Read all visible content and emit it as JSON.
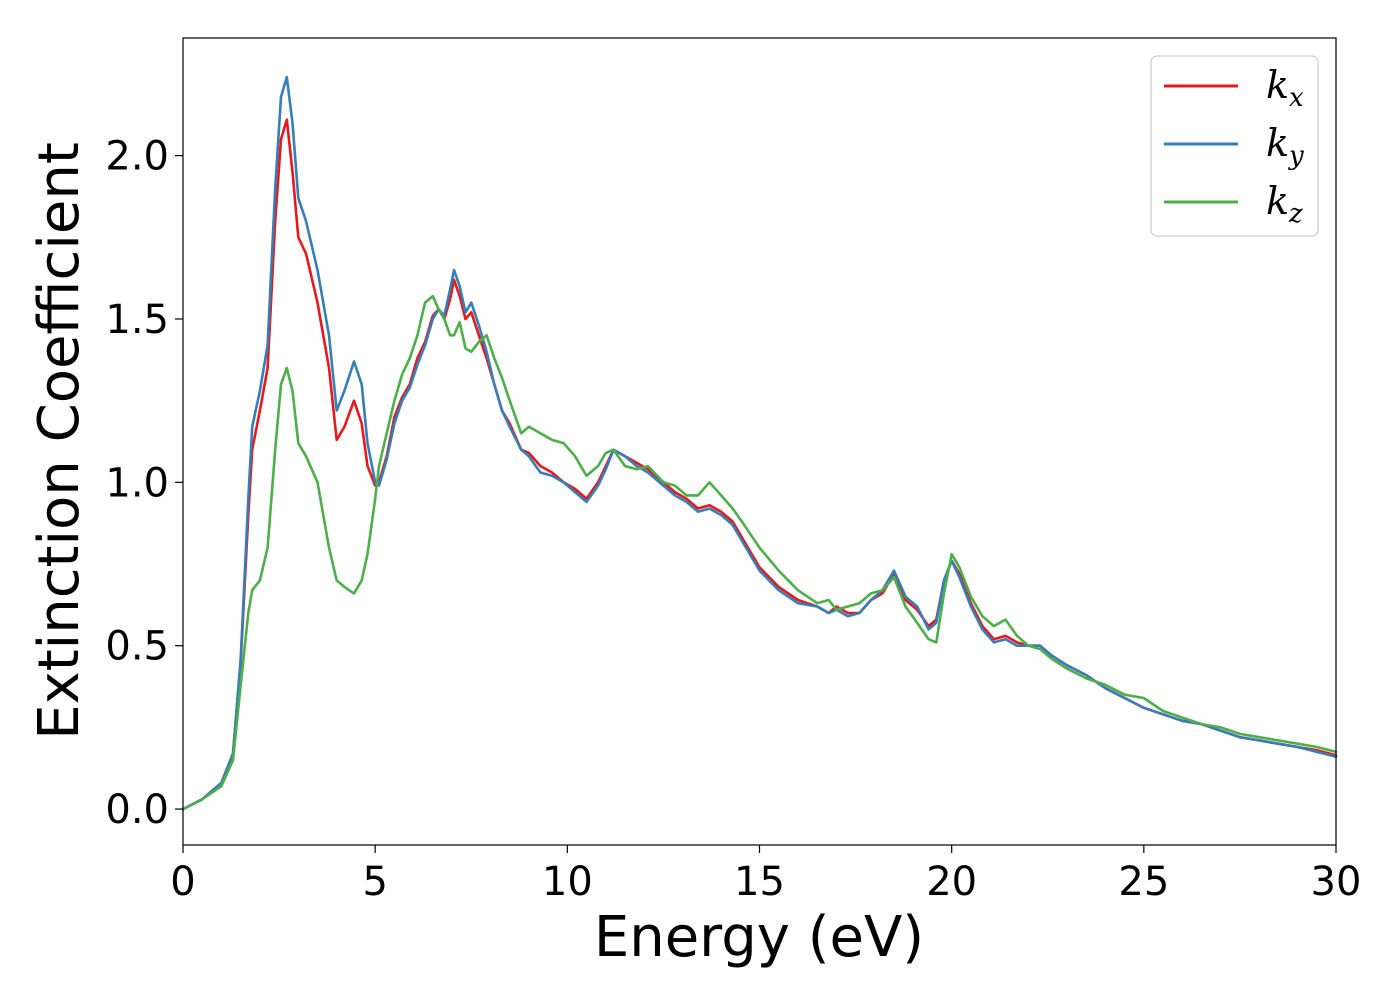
{
  "chart_data": {
    "type": "line",
    "title": "",
    "xlabel": "Energy (eV)",
    "ylabel": "Extinction Coefficient",
    "xlim": [
      0,
      30
    ],
    "ylim": [
      -0.11,
      2.36
    ],
    "xticks": [
      0,
      5,
      10,
      15,
      20,
      25,
      30
    ],
    "xtick_labels": [
      "0",
      "5",
      "10",
      "15",
      "20",
      "25",
      "30"
    ],
    "yticks": [
      0.0,
      0.5,
      1.0,
      1.5,
      2.0
    ],
    "ytick_labels": [
      "0.0",
      "0.5",
      "1.0",
      "1.5",
      "2.0"
    ],
    "grid": false,
    "legend_position": "top-right",
    "series": [
      {
        "name": "k",
        "subscript": "x",
        "color": "#e41a1c",
        "x": [
          0,
          0.5,
          1.0,
          1.3,
          1.5,
          1.7,
          1.8,
          2.0,
          2.2,
          2.4,
          2.55,
          2.7,
          2.85,
          3.0,
          3.2,
          3.5,
          3.8,
          4.0,
          4.2,
          4.45,
          4.65,
          4.8,
          5.0,
          5.1,
          5.3,
          5.5,
          5.7,
          5.9,
          6.1,
          6.3,
          6.5,
          6.65,
          6.8,
          6.95,
          7.05,
          7.2,
          7.35,
          7.5,
          7.7,
          7.9,
          8.1,
          8.3,
          8.5,
          8.8,
          9.0,
          9.3,
          9.6,
          9.9,
          10.2,
          10.5,
          10.8,
          11.0,
          11.2,
          11.5,
          11.8,
          12.1,
          12.5,
          12.8,
          13.1,
          13.4,
          13.7,
          14.0,
          14.3,
          14.6,
          15.0,
          15.5,
          16.0,
          16.5,
          16.8,
          17.0,
          17.3,
          17.6,
          17.9,
          18.2,
          18.5,
          18.8,
          19.1,
          19.4,
          19.6,
          19.8,
          20.0,
          20.2,
          20.5,
          20.8,
          21.1,
          21.4,
          21.7,
          22.0,
          22.3,
          22.6,
          23.0,
          23.5,
          24.0,
          24.5,
          25.0,
          25.5,
          26.0,
          26.5,
          27.0,
          27.5,
          28.0,
          28.5,
          29.0,
          29.5,
          30.0
        ],
        "y": [
          0,
          0.03,
          0.08,
          0.17,
          0.45,
          0.9,
          1.1,
          1.22,
          1.35,
          1.8,
          2.05,
          2.11,
          1.95,
          1.75,
          1.7,
          1.55,
          1.35,
          1.13,
          1.17,
          1.25,
          1.18,
          1.05,
          0.99,
          1.0,
          1.08,
          1.2,
          1.26,
          1.3,
          1.38,
          1.43,
          1.51,
          1.53,
          1.5,
          1.56,
          1.62,
          1.57,
          1.5,
          1.52,
          1.45,
          1.38,
          1.3,
          1.22,
          1.18,
          1.1,
          1.09,
          1.05,
          1.03,
          1.0,
          0.98,
          0.95,
          1.0,
          1.05,
          1.1,
          1.08,
          1.06,
          1.04,
          1.0,
          0.97,
          0.95,
          0.92,
          0.93,
          0.91,
          0.88,
          0.82,
          0.74,
          0.68,
          0.64,
          0.62,
          0.6,
          0.62,
          0.6,
          0.6,
          0.64,
          0.66,
          0.72,
          0.64,
          0.61,
          0.56,
          0.58,
          0.7,
          0.76,
          0.72,
          0.63,
          0.56,
          0.52,
          0.53,
          0.51,
          0.5,
          0.5,
          0.47,
          0.44,
          0.41,
          0.37,
          0.34,
          0.31,
          0.29,
          0.27,
          0.26,
          0.24,
          0.22,
          0.21,
          0.2,
          0.19,
          0.18,
          0.165
        ]
      },
      {
        "name": "k",
        "subscript": "y",
        "color": "#377eb8",
        "x": [
          0,
          0.5,
          1.0,
          1.3,
          1.5,
          1.7,
          1.8,
          2.0,
          2.2,
          2.4,
          2.55,
          2.7,
          2.85,
          3.0,
          3.2,
          3.5,
          3.8,
          4.0,
          4.2,
          4.45,
          4.65,
          4.8,
          5.0,
          5.1,
          5.3,
          5.5,
          5.7,
          5.9,
          6.1,
          6.3,
          6.5,
          6.65,
          6.8,
          6.95,
          7.05,
          7.2,
          7.35,
          7.5,
          7.7,
          7.9,
          8.1,
          8.3,
          8.5,
          8.8,
          9.0,
          9.3,
          9.6,
          9.9,
          10.2,
          10.5,
          10.8,
          11.0,
          11.2,
          11.5,
          11.8,
          12.1,
          12.5,
          12.8,
          13.1,
          13.4,
          13.7,
          14.0,
          14.3,
          14.6,
          15.0,
          15.5,
          16.0,
          16.5,
          16.8,
          17.0,
          17.3,
          17.6,
          17.9,
          18.2,
          18.5,
          18.8,
          19.1,
          19.4,
          19.6,
          19.8,
          20.0,
          20.2,
          20.5,
          20.8,
          21.1,
          21.4,
          21.7,
          22.0,
          22.3,
          22.6,
          23.0,
          23.5,
          24.0,
          24.5,
          25.0,
          25.5,
          26.0,
          26.5,
          27.0,
          27.5,
          28.0,
          28.5,
          29.0,
          29.5,
          30.0
        ],
        "y": [
          0,
          0.03,
          0.08,
          0.17,
          0.46,
          0.95,
          1.17,
          1.28,
          1.42,
          1.9,
          2.18,
          2.24,
          2.1,
          1.87,
          1.8,
          1.65,
          1.45,
          1.22,
          1.28,
          1.37,
          1.3,
          1.12,
          1.0,
          0.99,
          1.07,
          1.18,
          1.25,
          1.29,
          1.36,
          1.42,
          1.5,
          1.53,
          1.51,
          1.59,
          1.65,
          1.6,
          1.52,
          1.55,
          1.48,
          1.4,
          1.3,
          1.22,
          1.17,
          1.1,
          1.08,
          1.03,
          1.02,
          1.0,
          0.97,
          0.94,
          0.99,
          1.04,
          1.1,
          1.08,
          1.05,
          1.03,
          0.99,
          0.96,
          0.94,
          0.91,
          0.92,
          0.9,
          0.87,
          0.81,
          0.73,
          0.67,
          0.63,
          0.62,
          0.6,
          0.61,
          0.59,
          0.6,
          0.64,
          0.67,
          0.73,
          0.65,
          0.62,
          0.55,
          0.57,
          0.7,
          0.76,
          0.71,
          0.62,
          0.55,
          0.51,
          0.52,
          0.5,
          0.5,
          0.5,
          0.47,
          0.44,
          0.41,
          0.37,
          0.34,
          0.31,
          0.29,
          0.27,
          0.26,
          0.24,
          0.22,
          0.21,
          0.2,
          0.19,
          0.175,
          0.16
        ]
      },
      {
        "name": "k",
        "subscript": "z",
        "color": "#4daf4a",
        "x": [
          0,
          0.5,
          1.0,
          1.3,
          1.5,
          1.7,
          1.8,
          2.0,
          2.2,
          2.4,
          2.55,
          2.7,
          2.85,
          3.0,
          3.2,
          3.5,
          3.8,
          4.0,
          4.2,
          4.45,
          4.65,
          4.8,
          5.0,
          5.1,
          5.3,
          5.5,
          5.7,
          5.9,
          6.1,
          6.3,
          6.5,
          6.65,
          6.8,
          6.95,
          7.05,
          7.2,
          7.35,
          7.5,
          7.7,
          7.9,
          8.1,
          8.3,
          8.5,
          8.8,
          9.0,
          9.3,
          9.6,
          9.9,
          10.2,
          10.5,
          10.8,
          11.0,
          11.2,
          11.5,
          11.8,
          12.1,
          12.5,
          12.8,
          13.1,
          13.4,
          13.7,
          14.0,
          14.3,
          14.6,
          15.0,
          15.5,
          16.0,
          16.5,
          16.8,
          17.0,
          17.3,
          17.6,
          17.9,
          18.2,
          18.5,
          18.8,
          19.1,
          19.4,
          19.6,
          19.8,
          20.0,
          20.2,
          20.5,
          20.8,
          21.1,
          21.4,
          21.7,
          22.0,
          22.3,
          22.6,
          23.0,
          23.5,
          24.0,
          24.5,
          25.0,
          25.5,
          26.0,
          26.5,
          27.0,
          27.5,
          28.0,
          28.5,
          29.0,
          29.5,
          30.0
        ],
        "y": [
          0,
          0.03,
          0.07,
          0.15,
          0.38,
          0.6,
          0.67,
          0.7,
          0.8,
          1.1,
          1.3,
          1.35,
          1.28,
          1.12,
          1.08,
          1.0,
          0.8,
          0.7,
          0.68,
          0.66,
          0.7,
          0.78,
          0.95,
          1.05,
          1.15,
          1.25,
          1.33,
          1.38,
          1.45,
          1.55,
          1.57,
          1.53,
          1.5,
          1.45,
          1.45,
          1.49,
          1.41,
          1.4,
          1.43,
          1.45,
          1.38,
          1.32,
          1.25,
          1.15,
          1.17,
          1.15,
          1.13,
          1.12,
          1.08,
          1.02,
          1.05,
          1.09,
          1.1,
          1.05,
          1.04,
          1.05,
          1.0,
          0.99,
          0.96,
          0.96,
          1.0,
          0.96,
          0.92,
          0.87,
          0.8,
          0.73,
          0.67,
          0.63,
          0.64,
          0.61,
          0.62,
          0.63,
          0.66,
          0.67,
          0.71,
          0.62,
          0.57,
          0.52,
          0.51,
          0.66,
          0.78,
          0.74,
          0.65,
          0.59,
          0.56,
          0.58,
          0.53,
          0.5,
          0.49,
          0.46,
          0.43,
          0.4,
          0.38,
          0.35,
          0.34,
          0.3,
          0.28,
          0.26,
          0.25,
          0.23,
          0.22,
          0.21,
          0.2,
          0.19,
          0.175
        ]
      }
    ]
  }
}
